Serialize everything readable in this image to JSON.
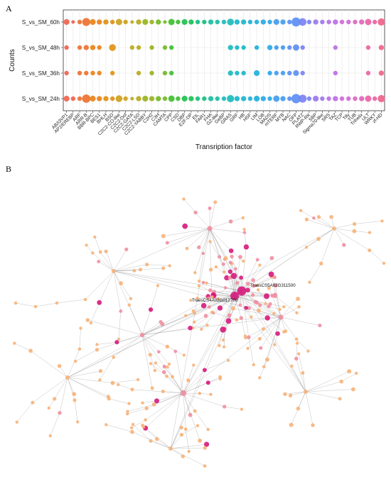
{
  "panels": {
    "a": "A",
    "b": "B"
  },
  "chart_data": [
    {
      "type": "scatter",
      "xlabel": "Transription factor",
      "ylabel": "Counts",
      "rows": [
        "S_vs_SM_60h",
        "S_vs_SM_48h",
        "S_vs_SM_36h",
        "S_vs_SM_24h"
      ],
      "categories": [
        "AB/I3VP1",
        "AP2/EREBP",
        "ARF",
        "ARR-B",
        "BBR-BPC",
        "BES1",
        "BHLH",
        "BSD",
        "C2C2-CO-like",
        "C2C2-Dof",
        "C2C2-GATA",
        "C2C2-LSD",
        "C2C2-YABBY",
        "C2H2",
        "C3H",
        "CAMTA",
        "CPP",
        "CSD",
        "DBP",
        "E2F-DP",
        "EIL",
        "FAR1",
        "FHA",
        "G2-like",
        "GeBP",
        "GRAS",
        "GRF",
        "HB",
        "HSF",
        "LIM",
        "LOB",
        "MADS",
        "mTERF",
        "MYB",
        "NAC",
        "OFP",
        "PLATZ",
        "RWP-RK",
        "SBP",
        "Sigma70-like",
        "SRS",
        "TAZ",
        "TCP",
        "Tify",
        "TUB",
        "Trihelix",
        "ULT",
        "WRKY",
        "zf-HD"
      ],
      "x_tick_labels": [
        "AB/I3VP1",
        "AP2/EREBP",
        "ARF",
        "ARR-B",
        "BBR-BPC",
        "BES1",
        "BHLH",
        "BSD",
        "C2C2-CO-like",
        "C2C2-Dof",
        "C2C2-GATA",
        "C2C2-LSD",
        "C2C2-YABBY",
        "C2H2",
        "C3H",
        "CAMTA",
        "CPP",
        "CSD",
        "DBP",
        "E2F-DP",
        "EIL",
        "FAR1",
        "FHA",
        "G2-like",
        "GeBP",
        "GRAS",
        "GRF",
        "HB",
        "HSF",
        "LIM",
        "LOB",
        "MADS",
        "mTERF",
        "MYB",
        "NAC",
        "OFP",
        "PLATZ",
        "RWP-RK",
        "SBP",
        "Sigma70-like",
        "SRS",
        "TAZ",
        "TCP",
        "Tify",
        "TUB",
        "Trihelix",
        "ULT",
        "WRKY",
        "zf-HD"
      ],
      "series": [
        {
          "name": "S_vs_SM_60h",
          "values": [
            4,
            1,
            2,
            9,
            4,
            3,
            3,
            2,
            5,
            2,
            1,
            3,
            4,
            2,
            3,
            1,
            5,
            2,
            4,
            3,
            2,
            2,
            3,
            2,
            2,
            6,
            3,
            3,
            2,
            2,
            3,
            2,
            4,
            3,
            2,
            12,
            8,
            2,
            3,
            2,
            2,
            3,
            2,
            2,
            2,
            3,
            5,
            2,
            7
          ]
        },
        {
          "name": "S_vs_SM_48h",
          "values": [
            2,
            0,
            2,
            3,
            3,
            2,
            0,
            6,
            0,
            0,
            2,
            2,
            0,
            2,
            0,
            2,
            2,
            0,
            0,
            0,
            0,
            0,
            0,
            0,
            0,
            3,
            2,
            2,
            0,
            2,
            0,
            3,
            2,
            2,
            2,
            5,
            2,
            0,
            0,
            0,
            0,
            2,
            0,
            0,
            0,
            0,
            2,
            0,
            3
          ]
        },
        {
          "name": "S_vs_SM_36h",
          "values": [
            2,
            0,
            2,
            2,
            2,
            2,
            0,
            2,
            0,
            0,
            0,
            2,
            0,
            2,
            0,
            2,
            2,
            0,
            0,
            0,
            0,
            0,
            0,
            0,
            0,
            3,
            2,
            2,
            0,
            4,
            0,
            2,
            2,
            2,
            2,
            4,
            2,
            0,
            0,
            0,
            0,
            2,
            0,
            0,
            0,
            0,
            2,
            0,
            3
          ]
        },
        {
          "name": "S_vs_SM_24h",
          "values": [
            4,
            2,
            2,
            10,
            4,
            3,
            3,
            2,
            6,
            2,
            1,
            3,
            4,
            3,
            3,
            2,
            5,
            2,
            4,
            3,
            2,
            2,
            3,
            2,
            2,
            7,
            3,
            3,
            2,
            4,
            3,
            2,
            5,
            3,
            2,
            13,
            9,
            2,
            4,
            2,
            2,
            3,
            2,
            2,
            2,
            3,
            5,
            2,
            7
          ]
        }
      ],
      "grid": true,
      "legend": "none"
    },
    {
      "type": "network",
      "highlighted_nodes": [
        {
          "label": "TraesCS5A02G311500"
        },
        {
          "label": "TraesCS4A02G012700"
        }
      ],
      "node_colors": {
        "low": "#f7b279",
        "mid": "#ef8fa1",
        "high": "#d6197c"
      }
    }
  ],
  "palette": [
    "#f0634f",
    "#ee7230",
    "#ea8219",
    "#df9112",
    "#cda11a",
    "#b7ab1c",
    "#98b31e",
    "#73ba24",
    "#3fbf31",
    "#1ec052",
    "#18c07f",
    "#1bbea0",
    "#1cbbbb",
    "#1bb6cc",
    "#1fb0da",
    "#2ba7e6",
    "#449cee",
    "#5c8ff3",
    "#7b82f2",
    "#9a78ee",
    "#b870e8",
    "#d16ad6",
    "#e066bd",
    "#ea64a4",
    "#f0638a"
  ]
}
